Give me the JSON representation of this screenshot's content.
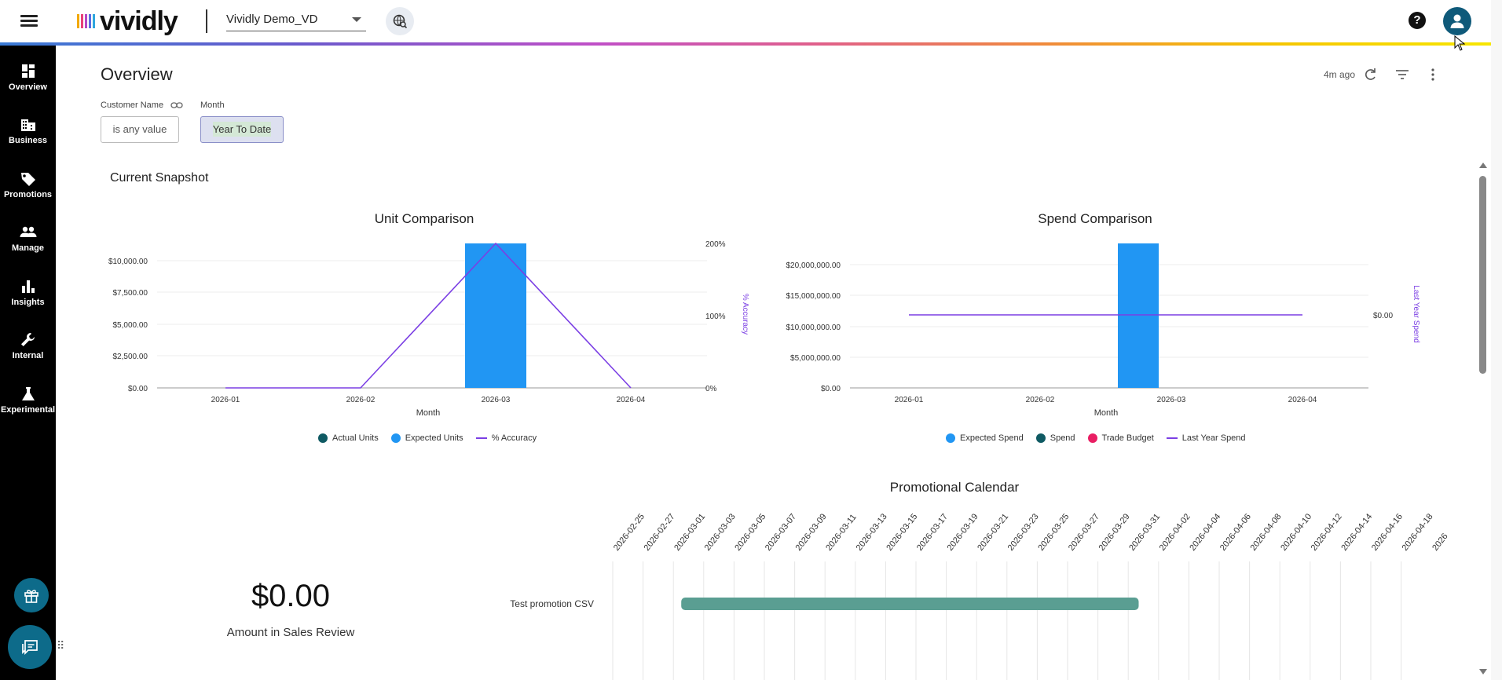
{
  "header": {
    "brand": "vividly",
    "account_name": "Vividly Demo_VD",
    "help_icon": "help-icon",
    "avatar_icon": "person-icon"
  },
  "sidebar": {
    "items": [
      {
        "label": "Overview",
        "icon": "dashboard-icon"
      },
      {
        "label": "Business",
        "icon": "building-icon"
      },
      {
        "label": "Promotions",
        "icon": "tag-icon"
      },
      {
        "label": "Manage",
        "icon": "people-icon"
      },
      {
        "label": "Insights",
        "icon": "bar-chart-icon"
      },
      {
        "label": "Internal",
        "icon": "wrench-icon"
      },
      {
        "label": "Experimental",
        "icon": "flask-icon"
      }
    ],
    "gift_icon": "gift-icon",
    "chat_icon": "chat-icon"
  },
  "dashboard": {
    "title": "Overview",
    "updated": "4m ago",
    "filters": [
      {
        "label": "Customer Name",
        "value": "is any value"
      },
      {
        "label": "Month",
        "value": "Year To Date"
      }
    ],
    "section_title": "Current Snapshot"
  },
  "colors": {
    "accent_blue": "#2196f3",
    "dark_teal": "#0f5a63",
    "accuracy_purple": "#7b3fe4",
    "trade_pink": "#e91e63",
    "promo_bar": "#5a9e92",
    "sidebar_bg": "#000000"
  },
  "chart_data": [
    {
      "type": "bar",
      "title": "Unit Comparison",
      "xlabel": "Month",
      "ylabel": "",
      "y2label": "% Accuracy",
      "categories": [
        "2026-01",
        "2026-02",
        "2026-03",
        "2026-04"
      ],
      "ylim": [
        0,
        11500
      ],
      "y_ticks": [
        "$0.00",
        "$2,500.00",
        "$5,000.00",
        "$7,500.00",
        "$10,000.00"
      ],
      "y2_ticks": [
        "0%",
        "100%",
        "200%"
      ],
      "series": [
        {
          "name": "Actual Units",
          "kind": "bar",
          "values": [
            0,
            0,
            0,
            0
          ]
        },
        {
          "name": "Expected Units",
          "kind": "bar",
          "values": [
            0,
            0,
            11500,
            0
          ]
        },
        {
          "name": "% Accuracy",
          "kind": "line",
          "axis": "y2",
          "values": [
            0,
            0,
            200,
            0
          ]
        }
      ]
    },
    {
      "type": "bar",
      "title": "Spend Comparison",
      "xlabel": "Month",
      "ylabel": "",
      "y2label": "Last Year Spend",
      "categories": [
        "2026-01",
        "2026-02",
        "2026-03",
        "2026-04"
      ],
      "ylim": [
        0,
        23000000
      ],
      "y_ticks": [
        "$0.00",
        "$5,000,000.00",
        "$10,000,000.00",
        "$15,000,000.00",
        "$20,000,000.00"
      ],
      "y2_ticks": [
        "$0.00"
      ],
      "series": [
        {
          "name": "Expected Spend",
          "kind": "bar",
          "values": [
            0,
            0,
            23000000,
            0
          ]
        },
        {
          "name": "Spend",
          "kind": "bar",
          "values": [
            0,
            0,
            0,
            0
          ]
        },
        {
          "name": "Trade Budget",
          "kind": "bar",
          "values": [
            0,
            0,
            0,
            0
          ]
        },
        {
          "name": "Last Year Spend",
          "kind": "line",
          "axis": "y2",
          "values": [
            0,
            0,
            0,
            0
          ]
        }
      ]
    }
  ],
  "kpi": {
    "value": "$0.00",
    "label": "Amount in Sales Review"
  },
  "calendar": {
    "title": "Promotional Calendar",
    "dates": [
      "2026-02-25",
      "2026-02-27",
      "2026-03-01",
      "2026-03-03",
      "2026-03-05",
      "2026-03-07",
      "2026-03-09",
      "2026-03-11",
      "2026-03-13",
      "2026-03-15",
      "2026-03-17",
      "2026-03-19",
      "2026-03-21",
      "2026-03-23",
      "2026-03-25",
      "2026-03-27",
      "2026-03-29",
      "2026-03-31",
      "2026-04-02",
      "2026-04-04",
      "2026-04-06",
      "2026-04-08",
      "2026-04-10",
      "2026-04-12",
      "2026-04-14",
      "2026-04-16",
      "2026-04-18",
      "2026"
    ],
    "promotions": [
      {
        "name": "Test promotion CSV",
        "start": "2026-03-01",
        "end": "2026-03-31"
      }
    ]
  }
}
